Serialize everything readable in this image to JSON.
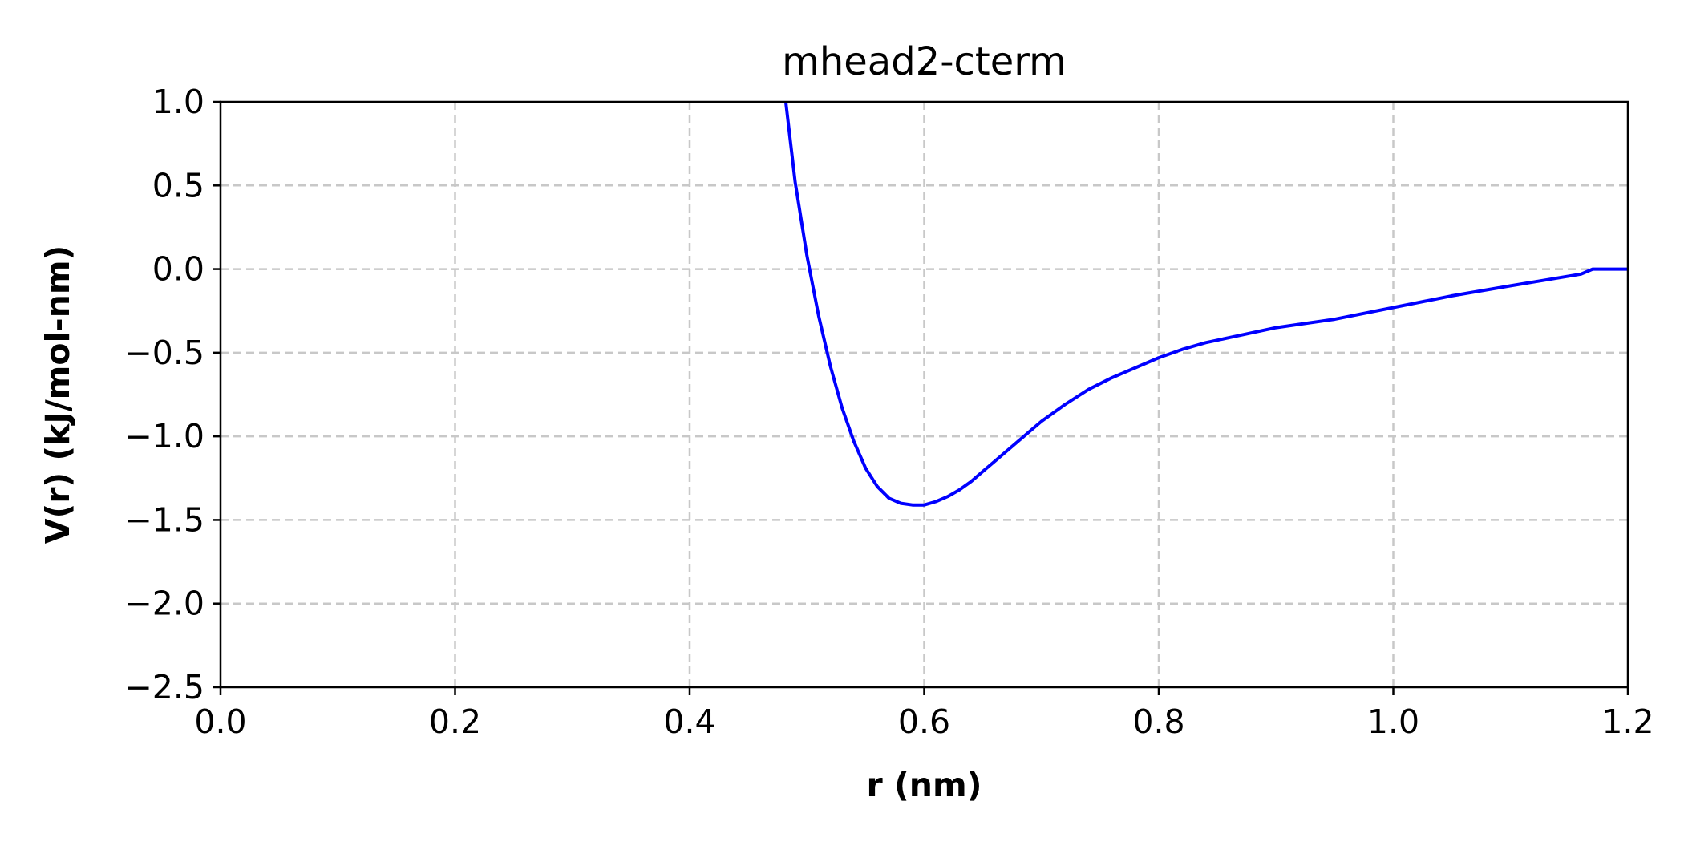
{
  "chart_data": {
    "type": "line",
    "title": "mhead2-cterm",
    "xlabel": "r (nm)",
    "ylabel": "V(r)  (kJ/mol-nm)",
    "xlim": [
      0.0,
      1.2
    ],
    "ylim": [
      -2.5,
      1.0
    ],
    "grid": true,
    "grid_style": "dashed",
    "legend": "none",
    "x_ticks": [
      0.0,
      0.2,
      0.4,
      0.6,
      0.8,
      1.0,
      1.2
    ],
    "x_tick_labels": [
      "0.0",
      "0.2",
      "0.4",
      "0.6",
      "0.8",
      "1.0",
      "1.2"
    ],
    "y_ticks": [
      1.0,
      0.5,
      0.0,
      -0.5,
      -1.0,
      -1.5,
      -2.0,
      -2.5
    ],
    "y_tick_labels": [
      "1.0",
      "0.5",
      "0.0",
      "−0.5",
      "−1.0",
      "−1.5",
      "−2.0",
      "−2.5"
    ],
    "series": [
      {
        "color": "#0000ff",
        "x": [
          0.482,
          0.49,
          0.5,
          0.51,
          0.52,
          0.53,
          0.54,
          0.55,
          0.56,
          0.57,
          0.58,
          0.59,
          0.6,
          0.61,
          0.62,
          0.63,
          0.64,
          0.65,
          0.66,
          0.67,
          0.68,
          0.69,
          0.7,
          0.72,
          0.74,
          0.76,
          0.78,
          0.8,
          0.82,
          0.84,
          0.86,
          0.88,
          0.9,
          0.92,
          0.95,
          1.0,
          1.05,
          1.1,
          1.16,
          1.17,
          1.18,
          1.19,
          1.2
        ],
        "y": [
          1.0,
          0.52,
          0.08,
          -0.28,
          -0.58,
          -0.83,
          -1.03,
          -1.19,
          -1.3,
          -1.37,
          -1.4,
          -1.41,
          -1.41,
          -1.39,
          -1.36,
          -1.32,
          -1.27,
          -1.21,
          -1.15,
          -1.09,
          -1.03,
          -0.97,
          -0.91,
          -0.81,
          -0.72,
          -0.65,
          -0.59,
          -0.53,
          -0.48,
          -0.44,
          -0.41,
          -0.38,
          -0.35,
          -0.33,
          -0.3,
          -0.23,
          -0.16,
          -0.1,
          -0.03,
          0.0,
          0.0,
          0.0,
          0.0
        ]
      }
    ]
  }
}
